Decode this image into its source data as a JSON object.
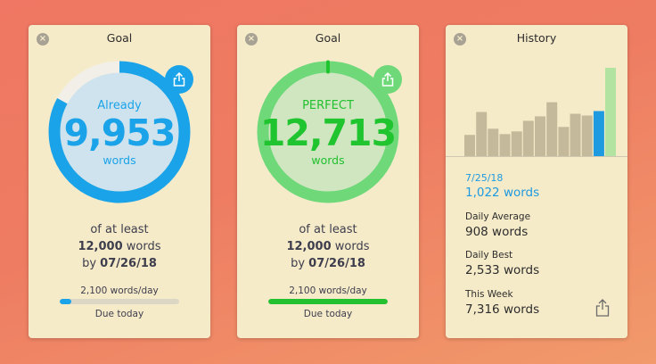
{
  "windows": [
    {
      "title": "Goal",
      "ring": {
        "label": "Already",
        "value": "9,953",
        "unit": "words",
        "progress": 0.829,
        "color": "#1aa3e8",
        "fill": "#cfe3ee"
      },
      "goal": {
        "prefix": "of at least",
        "words": "12,000",
        "words_unit": "words",
        "by": "by",
        "date": "07/26/18"
      },
      "rate": "2,100 words/day",
      "bar_progress": 0.1,
      "due": "Due today"
    },
    {
      "title": "Goal",
      "ring": {
        "label": "PERFECT",
        "value": "12,713",
        "unit": "words",
        "progress": 1.0,
        "color": "#6fd879",
        "fill": "#cfe6c0",
        "text_color": "#1fc42f"
      },
      "goal": {
        "prefix": "of at least",
        "words": "12,000",
        "words_unit": "words",
        "by": "by",
        "date": "07/26/18"
      },
      "rate": "2,100 words/day",
      "bar_progress": 1.0,
      "due": "Due today"
    }
  ],
  "history": {
    "title": "History",
    "selected_date": "7/25/18",
    "selected_words": "1,022 words",
    "stats": [
      {
        "label": "Daily Average",
        "value": "908 words"
      },
      {
        "label": "Daily Best",
        "value": "2,533 words"
      },
      {
        "label": "This Week",
        "value": "7,316 words"
      }
    ],
    "bars": [
      0.24,
      0.5,
      0.31,
      0.25,
      0.28,
      0.4,
      0.45,
      0.61,
      0.33,
      0.48,
      0.46,
      0.51,
      1.0
    ],
    "bar_colors": {
      "past": "#c4b99a",
      "selected": "#1e9ae0",
      "today": "#b3e3a0"
    },
    "selected_index": 11,
    "today_index": 12
  },
  "colors": {
    "panel": "#f6ebc9",
    "blue": "#1aa3e8",
    "green": "#23c030"
  }
}
